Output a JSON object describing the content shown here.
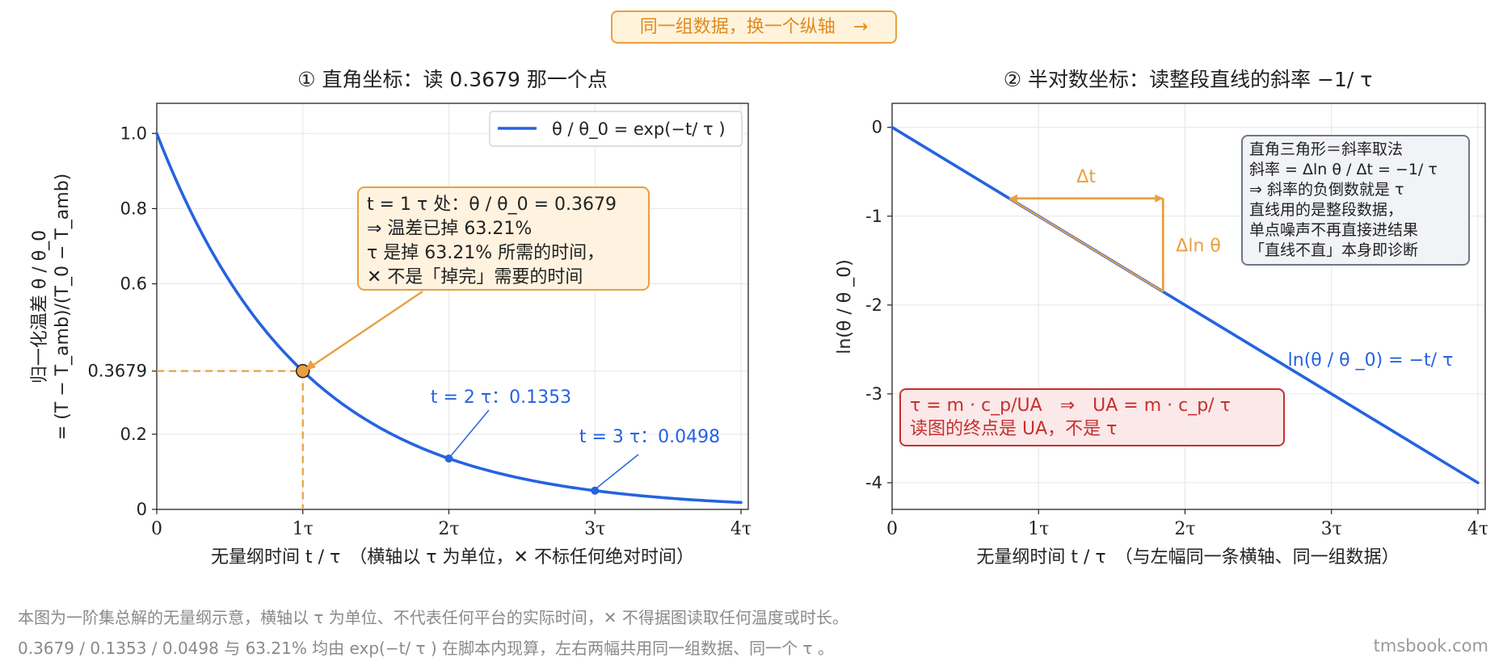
{
  "banner": "同一组数据，换一个纵轴　→",
  "left_panel": {
    "title": "① 直角坐标：读 0.3679 那一个点",
    "xlabel": "无量纲时间 t / τ　（横轴以 τ 为单位，✕ 不标任何绝对时间）",
    "ylabel_line1": "归一化温差 θ / θ_0",
    "ylabel_line2": "= (T − T_amb)/(T_0 − T_amb)",
    "legend": "θ / θ_0 = exp(−t/ τ )",
    "callout_lines": [
      "t = 1 τ 处：θ / θ_0 = 0.3679",
      "⇒ 温差已掉 63.21%",
      " τ  是掉 63.21% 所需的时间，",
      "✕ 不是「掉完」需要的时间"
    ],
    "point2_label": "t = 2 τ：0.1353",
    "point3_label": "t = 3 τ：0.0498"
  },
  "right_panel": {
    "title": "② 半对数坐标：读整段直线的斜率 −1/ τ",
    "xlabel": "无量纲时间 t / τ　（与左幅同一条横轴、同一组数据）",
    "ylabel": "ln(θ / θ _0)",
    "line_label": "ln(θ / θ _0) = −t/ τ",
    "delta_t": "Δt",
    "delta_ln": "Δln θ",
    "info_lines": [
      "直角三角形＝斜率取法",
      "斜率 = Δln θ / Δt = −1/ τ",
      "⇒ 斜率的负倒数就是  τ",
      "直线用的是整段数据，",
      "单点噪声不再直接进结果",
      "「直线不直」本身即诊断"
    ],
    "red_lines": [
      " τ  = m · c_p/UA　⇒　UA = m · c_p/ τ",
      "读图的终点是 UA，不是  τ"
    ]
  },
  "footnote1": "本图为一阶集总解的无量纲示意，横轴以  τ  为单位、不代表任何平台的实际时间，✕ 不得据图读取任何温度或时长。",
  "footnote2": "0.3679 / 0.1353 / 0.0498 与 63.21% 均由 exp(−t/ τ ) 在脚本内现算，左右两幅共用同一组数据、同一个  τ 。",
  "watermark": "tmsbook.com",
  "colors": {
    "curve": "#2563e0",
    "accent": "#e8a040",
    "red": "#c43030",
    "grid": "#e6e6e6"
  },
  "chart_data": [
    {
      "type": "line",
      "title": "① 直角坐标：读 0.3679 那一个点",
      "xlabel": "无量纲时间 t / τ",
      "ylabel": "归一化温差 θ / θ_0 = (T − T_amb)/(T_0 − T_amb)",
      "xlim": [
        0,
        4.05
      ],
      "ylim": [
        0,
        1.08
      ],
      "x_ticks": [
        "0",
        "1τ",
        "2τ",
        "3τ",
        "4τ"
      ],
      "y_ticks": [
        "0",
        "0.2",
        "0.3679",
        "0.6",
        "0.8",
        "1.0"
      ],
      "y_tick_values": [
        0,
        0.2,
        0.3679,
        0.6,
        0.8,
        1.0
      ],
      "grid": true,
      "legend_position": "top-right",
      "series": [
        {
          "name": "θ / θ_0 = exp(−t/ τ )",
          "function": "exp(-t)",
          "x_range": [
            0,
            4
          ]
        }
      ],
      "highlight_points": [
        {
          "x": 1,
          "y": 0.3679
        },
        {
          "x": 2,
          "y": 0.1353
        },
        {
          "x": 3,
          "y": 0.0498
        }
      ]
    },
    {
      "type": "line",
      "title": "② 半对数坐标：读整段直线的斜率 −1/ τ",
      "xlabel": "无量纲时间 t / τ",
      "ylabel": "ln(θ / θ _0)",
      "xlim": [
        0,
        4.05
      ],
      "ylim": [
        -4.3,
        0.27
      ],
      "x_ticks": [
        "0",
        "1τ",
        "2τ",
        "3τ",
        "4τ"
      ],
      "y_ticks": [
        "0",
        "-1",
        "-2",
        "-3",
        "-4"
      ],
      "y_tick_values": [
        0,
        -1,
        -2,
        -3,
        -4
      ],
      "grid": true,
      "series": [
        {
          "name": "ln(θ / θ _0) = −t/ τ",
          "points": [
            [
              0,
              0
            ],
            [
              4,
              -4
            ]
          ]
        }
      ],
      "slope_triangle": {
        "t_start": 0.8,
        "t_end": 1.85,
        "y_start": -0.8,
        "y_end": -1.85
      }
    }
  ]
}
